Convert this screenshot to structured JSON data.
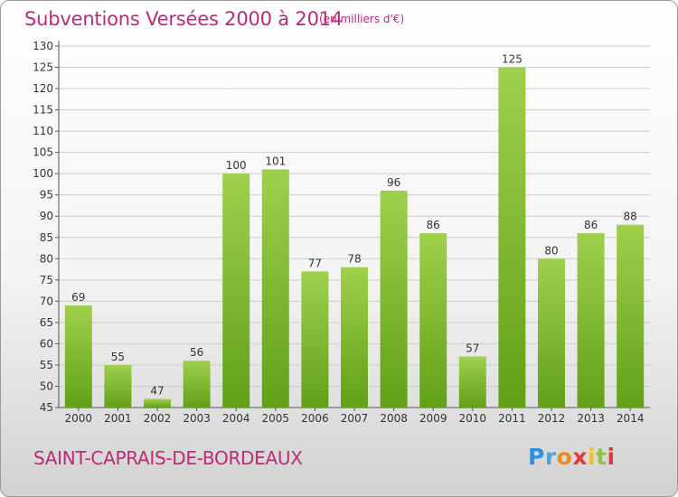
{
  "title": "Subventions Versées 2000 à 2014",
  "unit_note": "(en milliers d'€)",
  "commune": "SAINT-CAPRAIS-DE-BORDEAUX",
  "logo": {
    "letters": [
      "P",
      "r",
      "o",
      "x",
      "i",
      "t",
      "i"
    ],
    "colors": [
      "#2f8fd8",
      "#4aa4e0",
      "#f08a1c",
      "#e23a3a",
      "#f3c21c",
      "#8cc63f",
      "#e23a3a"
    ]
  },
  "colors": {
    "bar_top": "#9fd04c",
    "bar_bottom": "#62a018",
    "text_accent": "#c02878",
    "grid": "#cccccc"
  },
  "chart_data": {
    "type": "bar",
    "categories": [
      "2000",
      "2001",
      "2002",
      "2003",
      "2004",
      "2005",
      "2006",
      "2007",
      "2008",
      "2009",
      "2010",
      "2011",
      "2012",
      "2013",
      "2014"
    ],
    "values": [
      69,
      55,
      47,
      56,
      100,
      101,
      77,
      78,
      96,
      86,
      57,
      125,
      80,
      86,
      88
    ],
    "title": "Subventions Versées 2000 à 2014",
    "ylim": [
      45,
      130
    ],
    "yticks": [
      45,
      50,
      55,
      60,
      65,
      70,
      75,
      80,
      85,
      90,
      95,
      100,
      105,
      110,
      115,
      120,
      125,
      130
    ],
    "grid": true
  }
}
